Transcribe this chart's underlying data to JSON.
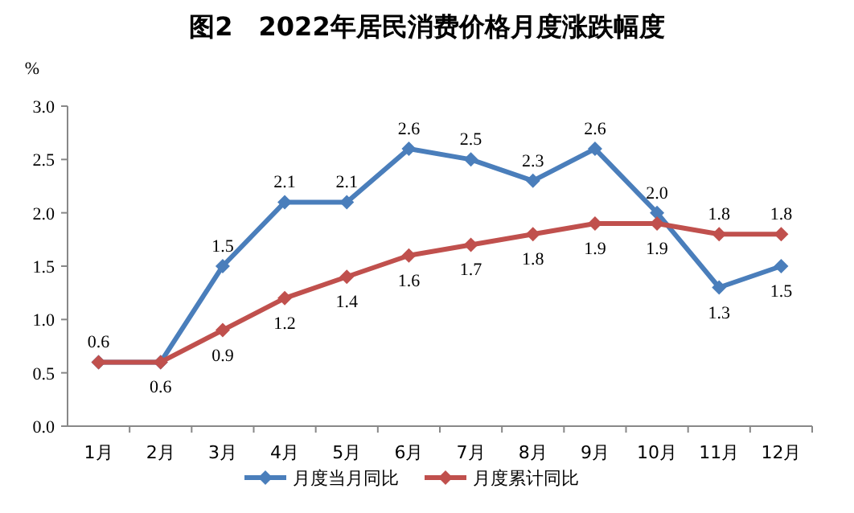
{
  "chart_data": {
    "type": "line",
    "title": "图2　2022年居民消费价格月度涨跌幅度",
    "ylabel": "%",
    "categories": [
      "1月",
      "2月",
      "3月",
      "4月",
      "5月",
      "6月",
      "7月",
      "8月",
      "9月",
      "10月",
      "11月",
      "12月"
    ],
    "ylim": [
      0,
      3
    ],
    "yticks": [
      {
        "value": 0,
        "label": "0.0"
      },
      {
        "value": 0.5,
        "label": "0.5"
      },
      {
        "value": 1,
        "label": "1.0"
      },
      {
        "value": 1.5,
        "label": "1.5"
      },
      {
        "value": 2,
        "label": "2.0"
      },
      {
        "value": 2.5,
        "label": "2.5"
      },
      {
        "value": 3,
        "label": "3.0"
      }
    ],
    "grid": false,
    "legend": "bottom",
    "marker": "diamond",
    "line_style": "solid",
    "series": [
      {
        "name": "月度当月同比",
        "color": "#4a7ebb",
        "values": [
          0.6,
          0.6,
          1.5,
          2.1,
          2.1,
          2.6,
          2.5,
          2.3,
          2.6,
          2.0,
          1.3,
          1.5
        ],
        "value_labels": [
          "0.6",
          null,
          "1.5",
          "2.1",
          "2.1",
          "2.6",
          "2.5",
          "2.3",
          "2.6",
          "2.0",
          "1.3",
          "1.5"
        ]
      },
      {
        "name": "月度累计同比",
        "color": "#c0504d",
        "values": [
          0.6,
          0.6,
          0.9,
          1.2,
          1.4,
          1.6,
          1.7,
          1.8,
          1.9,
          1.9,
          1.8,
          1.8
        ],
        "value_labels": [
          null,
          "0.6",
          "0.9",
          "1.2",
          "1.4",
          "1.6",
          "1.7",
          "1.8",
          "1.9",
          "1.9",
          "1.8",
          "1.8"
        ]
      }
    ]
  }
}
